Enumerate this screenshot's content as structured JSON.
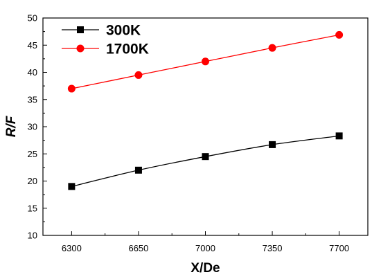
{
  "chart_data": {
    "type": "line",
    "title": "",
    "xlabel": "X/De",
    "ylabel": "R/F",
    "x": [
      6300,
      6650,
      7000,
      7350,
      7700
    ],
    "xlim": [
      6150,
      7850
    ],
    "ylim": [
      10,
      50
    ],
    "yticks": [
      10,
      15,
      20,
      25,
      30,
      35,
      40,
      45,
      50
    ],
    "grid": false,
    "legend": "top-left",
    "series": [
      {
        "name": "300K",
        "values": [
          19,
          22,
          24.5,
          26.7,
          28.3
        ],
        "color": "#000000",
        "marker": "square"
      },
      {
        "name": "1700K",
        "values": [
          37,
          39.5,
          42,
          44.5,
          46.9
        ],
        "color": "#ff0000",
        "marker": "circle"
      }
    ]
  }
}
